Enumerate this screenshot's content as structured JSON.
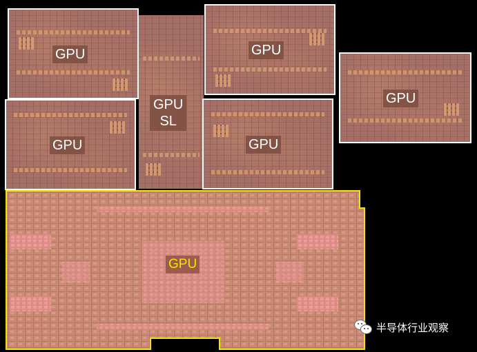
{
  "image": {
    "dies": [
      {
        "label_lines": [
          "GPU"
        ]
      },
      {
        "label_lines": [
          "GPU",
          "SL"
        ]
      },
      {
        "label_lines": [
          "GPU"
        ]
      },
      {
        "label_lines": [
          "GPU"
        ]
      },
      {
        "label_lines": [
          "GPU"
        ]
      },
      {
        "label_lines": [
          "GPU"
        ]
      },
      {
        "label_lines": [
          "GPU"
        ]
      }
    ],
    "colors": {
      "background": "#000000",
      "small_die_border": "#ffffff",
      "large_die_outline": "#f2e600",
      "large_die_label": "#f2e600",
      "small_die_label": "#ffffff"
    }
  },
  "watermark": {
    "icon": "wechat-icon",
    "text": "半导体行业观察"
  }
}
